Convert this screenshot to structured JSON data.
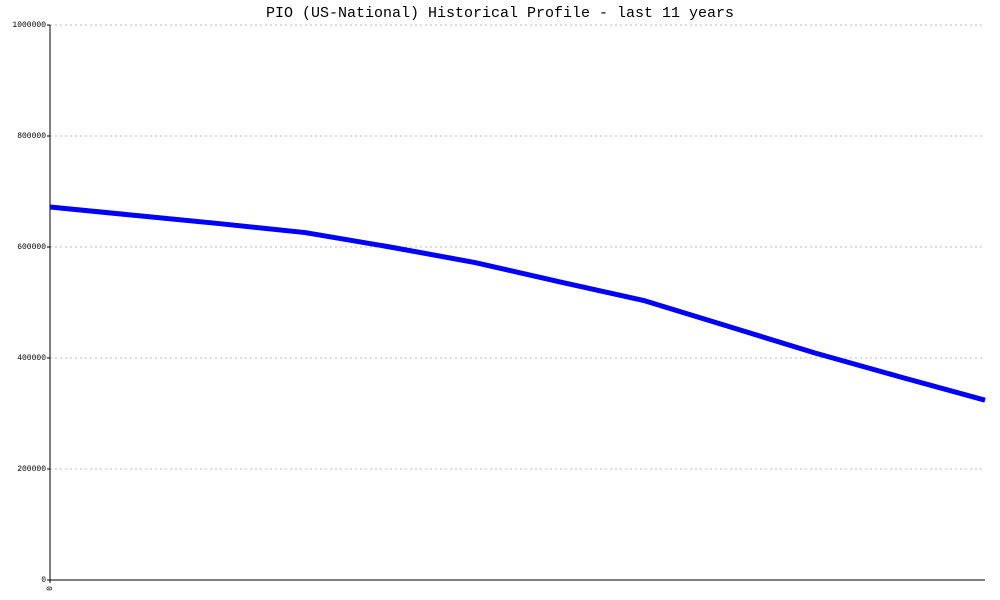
{
  "chart_data": {
    "type": "line",
    "title": "PIO (US-National) Historical Profile - last 11 years",
    "x": [
      0,
      1,
      2,
      3,
      4,
      5,
      6,
      7,
      8,
      9,
      10,
      11
    ],
    "series": [
      {
        "name": "PIO",
        "color": "#0000ff",
        "values": [
          672000,
          657000,
          642000,
          626000,
          600000,
          572000,
          537000,
          503000,
          456000,
          409000,
          366000,
          324000
        ]
      }
    ],
    "xlim": [
      0,
      11
    ],
    "xticks": [
      0
    ],
    "ylim": [
      0,
      1000000
    ],
    "yticks": [
      0,
      200000,
      400000,
      600000,
      800000,
      1000000
    ],
    "grid": true
  }
}
